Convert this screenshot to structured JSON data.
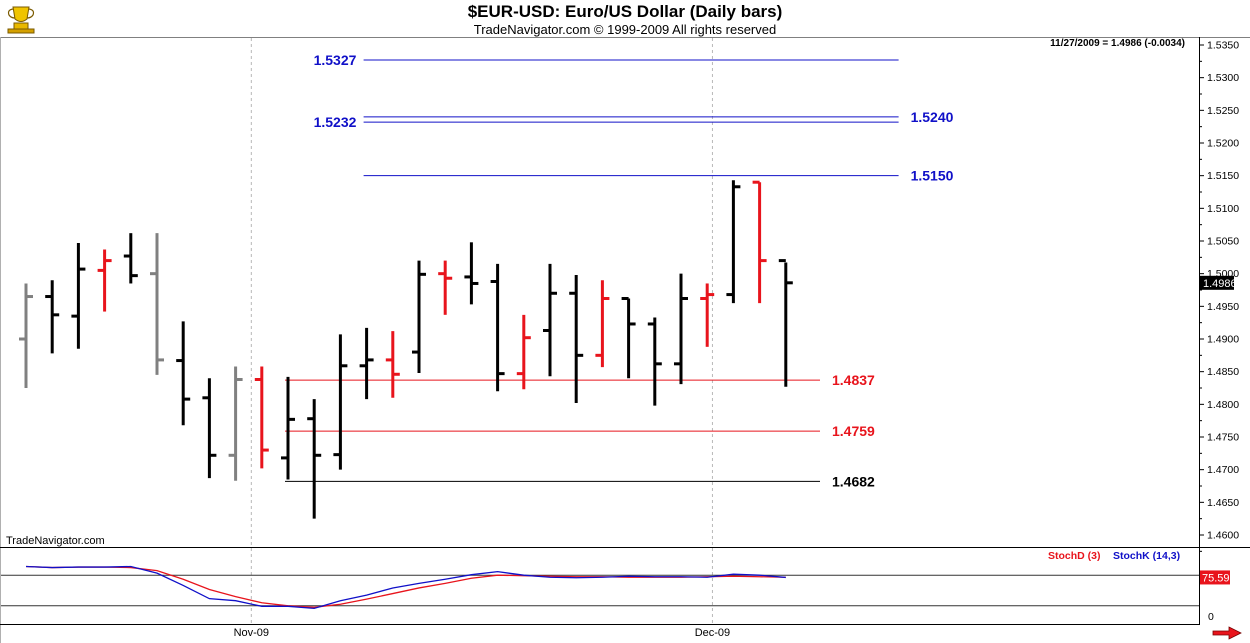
{
  "header": {
    "title": "$EUR-USD:  Euro/US Dollar  (Daily bars)",
    "subtitle": "TradeNavigator.com © 1999-2009 All rights reserved",
    "readout": "11/27/2009 = 1.4986 (-0.0034)",
    "brand": "TradeNavigator.com"
  },
  "colors": {
    "up": "#000000",
    "down": "#e8141c",
    "neutral": "#808080",
    "blue": "#1010c8",
    "red": "#e8141c",
    "black": "#000000",
    "stoch_d": "#e8141c",
    "stoch_k": "#1010c8"
  },
  "icons": {
    "logo": "trophy-logo-icon",
    "scroll": "right-arrow-icon"
  },
  "chart_data": [
    {
      "type": "ohlc",
      "title": "$EUR-USD:  Euro/US Dollar  (Daily bars)",
      "ylim": [
        1.46,
        1.535
      ],
      "y_ticks": [
        "1.5350",
        "1.5300",
        "1.5250",
        "1.5200",
        "1.5150",
        "1.5100",
        "1.5050",
        "1.5000",
        "1.4950",
        "1.4900",
        "1.4850",
        "1.4800",
        "1.4750",
        "1.4700",
        "1.4650",
        "1.4600"
      ],
      "last_price_label": "1.4986",
      "bars": [
        {
          "o": 1.49,
          "h": 1.4985,
          "l": 1.4825,
          "c": 1.4965,
          "color": "neutral"
        },
        {
          "o": 1.4965,
          "h": 1.499,
          "l": 1.4878,
          "c": 1.4937,
          "color": "up"
        },
        {
          "o": 1.4935,
          "h": 1.5047,
          "l": 1.4885,
          "c": 1.5007,
          "color": "up"
        },
        {
          "o": 1.5005,
          "h": 1.5037,
          "l": 1.4942,
          "c": 1.502,
          "color": "down"
        },
        {
          "o": 1.5027,
          "h": 1.5062,
          "l": 1.4985,
          "c": 1.4997,
          "color": "up"
        },
        {
          "o": 1.5,
          "h": 1.5062,
          "l": 1.4845,
          "c": 1.4868,
          "color": "neutral"
        },
        {
          "o": 1.4867,
          "h": 1.4927,
          "l": 1.4768,
          "c": 1.4808,
          "color": "up"
        },
        {
          "o": 1.481,
          "h": 1.484,
          "l": 1.4687,
          "c": 1.4722,
          "color": "up"
        },
        {
          "o": 1.4722,
          "h": 1.4858,
          "l": 1.4683,
          "c": 1.4838,
          "color": "neutral"
        },
        {
          "o": 1.4838,
          "h": 1.4858,
          "l": 1.4702,
          "c": 1.473,
          "color": "down"
        },
        {
          "o": 1.4718,
          "h": 1.4842,
          "l": 1.4685,
          "c": 1.4777,
          "color": "up"
        },
        {
          "o": 1.4778,
          "h": 1.4808,
          "l": 1.4625,
          "c": 1.4722,
          "color": "up"
        },
        {
          "o": 1.4723,
          "h": 1.4907,
          "l": 1.47,
          "c": 1.4859,
          "color": "up"
        },
        {
          "o": 1.4859,
          "h": 1.4917,
          "l": 1.4808,
          "c": 1.4868,
          "color": "up"
        },
        {
          "o": 1.4868,
          "h": 1.4912,
          "l": 1.481,
          "c": 1.4846,
          "color": "down"
        },
        {
          "o": 1.488,
          "h": 1.502,
          "l": 1.4848,
          "c": 1.4999,
          "color": "up"
        },
        {
          "o": 1.5,
          "h": 1.502,
          "l": 1.4937,
          "c": 1.4993,
          "color": "down"
        },
        {
          "o": 1.4995,
          "h": 1.5048,
          "l": 1.4953,
          "c": 1.4985,
          "color": "up"
        },
        {
          "o": 1.4988,
          "h": 1.5015,
          "l": 1.482,
          "c": 1.4847,
          "color": "up"
        },
        {
          "o": 1.4847,
          "h": 1.4937,
          "l": 1.4823,
          "c": 1.4902,
          "color": "down"
        },
        {
          "o": 1.4913,
          "h": 1.5015,
          "l": 1.4843,
          "c": 1.497,
          "color": "up"
        },
        {
          "o": 1.497,
          "h": 1.4998,
          "l": 1.4802,
          "c": 1.4875,
          "color": "up"
        },
        {
          "o": 1.4875,
          "h": 1.499,
          "l": 1.4857,
          "c": 1.4962,
          "color": "down"
        },
        {
          "o": 1.4962,
          "h": 1.4962,
          "l": 1.484,
          "c": 1.4923,
          "color": "up"
        },
        {
          "o": 1.4923,
          "h": 1.4933,
          "l": 1.4798,
          "c": 1.4862,
          "color": "up"
        },
        {
          "o": 1.4862,
          "h": 1.5,
          "l": 1.4831,
          "c": 1.4962,
          "color": "up"
        },
        {
          "o": 1.4962,
          "h": 1.4985,
          "l": 1.4888,
          "c": 1.4968,
          "color": "down"
        },
        {
          "o": 1.4968,
          "h": 1.5143,
          "l": 1.4955,
          "c": 1.5133,
          "color": "up"
        },
        {
          "o": 1.514,
          "h": 1.514,
          "l": 1.4955,
          "c": 1.502,
          "color": "down"
        },
        {
          "o": 1.502,
          "h": 1.5017,
          "l": 1.4827,
          "c": 1.4986,
          "color": "up"
        }
      ],
      "levels": [
        {
          "value": 1.5327,
          "label": "1.5327",
          "label_side": "left",
          "color": "blue",
          "x_from": 13,
          "x_to": 33
        },
        {
          "value": 1.524,
          "label": "1.5240",
          "label_side": "right",
          "color": "blue",
          "x_from": 13,
          "x_to": 33
        },
        {
          "value": 1.5232,
          "label": "1.5232",
          "label_side": "left",
          "color": "blue",
          "x_from": 13,
          "x_to": 33
        },
        {
          "value": 1.515,
          "label": "1.5150",
          "label_side": "right",
          "color": "blue",
          "x_from": 13,
          "x_to": 33
        },
        {
          "value": 1.4837,
          "label": "1.4837",
          "label_side": "right",
          "color": "red",
          "x_from": 10,
          "x_to": 30
        },
        {
          "value": 1.4759,
          "label": "1.4759",
          "label_side": "right",
          "color": "red",
          "x_from": 10,
          "x_to": 30
        },
        {
          "value": 1.4682,
          "label": "1.4682",
          "label_side": "right",
          "color": "black",
          "x_from": 10,
          "x_to": 30
        }
      ],
      "x_ticks": [
        {
          "label": "Nov-09",
          "index": 8.6
        },
        {
          "label": "Dec-09",
          "index": 26.2
        }
      ]
    },
    {
      "type": "line",
      "title": "",
      "ylim": [
        0,
        100
      ],
      "y_ticks": [
        "0"
      ],
      "reference_lines": [
        20,
        80
      ],
      "last_value_label": "75.59",
      "series": [
        {
          "name": "StochD (3)",
          "color": "stoch_d",
          "values": [
            97,
            95,
            96,
            96,
            95,
            89,
            72,
            52,
            38,
            26,
            20,
            17,
            23,
            33,
            44,
            55,
            64,
            74,
            80,
            79,
            78,
            77,
            77,
            76,
            76,
            76,
            77,
            78,
            77,
            76
          ]
        },
        {
          "name": "StochK (14,3)",
          "color": "stoch_k",
          "values": [
            97,
            95,
            96,
            96,
            97,
            84,
            60,
            34,
            30,
            19,
            19,
            15,
            30,
            41,
            55,
            64,
            72,
            81,
            87,
            80,
            76,
            75,
            76,
            78,
            77,
            77,
            76,
            82,
            80,
            75.59
          ]
        }
      ]
    }
  ]
}
